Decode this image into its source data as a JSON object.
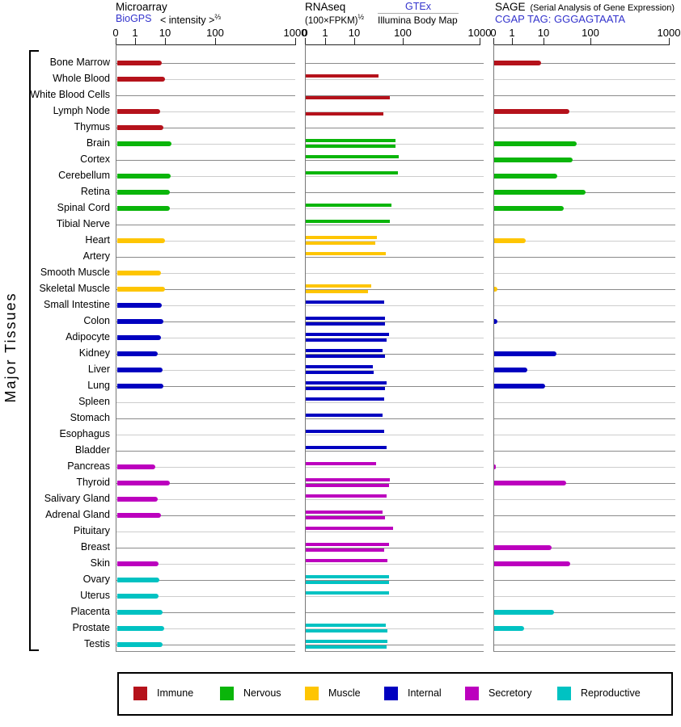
{
  "page": {
    "group_label": "Major Tissues"
  },
  "chart_data": {
    "type": "bar",
    "orientation": "horizontal",
    "axis": {
      "tick_labels": [
        "0",
        "1",
        "10",
        "100",
        "1000"
      ],
      "scale": "power",
      "range": [
        0,
        1000
      ]
    },
    "panels": [
      {
        "id": "microarray",
        "title": "Microarray",
        "source_link": "BioGPS",
        "scale_label": "< intensity >",
        "scale_sup": "⅔"
      },
      {
        "id": "rnaseq",
        "title": "RNAseq",
        "scale_label": "(100×FPKM)",
        "scale_sup": "½",
        "source_link": "GTEx",
        "source2": "Illumina Body Map"
      },
      {
        "id": "sage",
        "title": "SAGE",
        "subtitle": "(Serial Analysis of Gene Expression)",
        "source_link": "CGAP TAG: GGGAGTAATA"
      }
    ],
    "legend": [
      {
        "key": "immune",
        "label": "Immune",
        "color": "#b5121b"
      },
      {
        "key": "nervous",
        "label": "Nervous",
        "color": "#0ab50a"
      },
      {
        "key": "muscle",
        "label": "Muscle",
        "color": "#fec502"
      },
      {
        "key": "internal",
        "label": "Internal",
        "color": "#0000c0"
      },
      {
        "key": "secretory",
        "label": "Secretory",
        "color": "#bc00be"
      },
      {
        "key": "reproductive",
        "label": "Reproductive",
        "color": "#00c2c2"
      }
    ],
    "tissues": [
      {
        "name": "Bone Marrow",
        "group": "immune",
        "microarray": 7.8,
        "gtex": null,
        "illumina": null,
        "sage": 8.3
      },
      {
        "name": "Whole Blood",
        "group": "immune",
        "microarray": 10,
        "gtex": 32,
        "illumina": null,
        "sage": null
      },
      {
        "name": "White Blood Cells",
        "group": "immune",
        "microarray": null,
        "gtex": null,
        "illumina": 55,
        "sage": null
      },
      {
        "name": "Lymph Node",
        "group": "immune",
        "microarray": 7,
        "gtex": null,
        "illumina": 40,
        "sage": 35
      },
      {
        "name": "Thymus",
        "group": "immune",
        "microarray": 9,
        "gtex": null,
        "illumina": null,
        "sage": null
      },
      {
        "name": "Brain",
        "group": "nervous",
        "microarray": 13.5,
        "gtex": 70,
        "illumina": 70,
        "sage": 50
      },
      {
        "name": "Cortex",
        "group": "nervous",
        "microarray": null,
        "gtex": 82,
        "illumina": null,
        "sage": 42
      },
      {
        "name": "Cerebellum",
        "group": "nervous",
        "microarray": 13,
        "gtex": 79,
        "illumina": null,
        "sage": 20
      },
      {
        "name": "Retina",
        "group": "nervous",
        "microarray": 12.5,
        "gtex": null,
        "illumina": null,
        "sage": 80
      },
      {
        "name": "Spinal Cord",
        "group": "nervous",
        "microarray": 12.5,
        "gtex": 58,
        "illumina": null,
        "sage": 27
      },
      {
        "name": "Tibial Nerve",
        "group": "nervous",
        "microarray": null,
        "gtex": 54,
        "illumina": null,
        "sage": null
      },
      {
        "name": "Heart",
        "group": "muscle",
        "microarray": 10,
        "gtex": 29,
        "illumina": 27,
        "sage": 2.7
      },
      {
        "name": "Artery",
        "group": "muscle",
        "microarray": null,
        "gtex": 45,
        "illumina": null,
        "sage": null
      },
      {
        "name": "Smooth Muscle",
        "group": "muscle",
        "microarray": 7.3,
        "gtex": null,
        "illumina": null,
        "sage": null
      },
      {
        "name": "Skeletal Muscle",
        "group": "muscle",
        "microarray": 10,
        "gtex": 22,
        "illumina": 19,
        "sage": 0.2
      },
      {
        "name": "Small Intestine",
        "group": "internal",
        "microarray": 7.8,
        "gtex": 42,
        "illumina": null,
        "sage": null
      },
      {
        "name": "Colon",
        "group": "internal",
        "microarray": 8.8,
        "gtex": 43,
        "illumina": 43,
        "sage": 0.2
      },
      {
        "name": "Adipocyte",
        "group": "internal",
        "microarray": 7.3,
        "gtex": 52,
        "illumina": 46,
        "sage": null
      },
      {
        "name": "Kidney",
        "group": "internal",
        "microarray": 5.7,
        "gtex": 38,
        "illumina": 43,
        "sage": 19
      },
      {
        "name": "Liver",
        "group": "internal",
        "microarray": 8.3,
        "gtex": 24,
        "illumina": 25,
        "sage": 3
      },
      {
        "name": "Lung",
        "group": "internal",
        "microarray": 8.8,
        "gtex": 46,
        "illumina": 43,
        "sage": 11
      },
      {
        "name": "Spleen",
        "group": "internal",
        "microarray": null,
        "gtex": 41,
        "illumina": null,
        "sage": null
      },
      {
        "name": "Stomach",
        "group": "internal",
        "microarray": null,
        "gtex": 38,
        "illumina": null,
        "sage": null
      },
      {
        "name": "Esophagus",
        "group": "internal",
        "microarray": null,
        "gtex": 41,
        "illumina": null,
        "sage": null
      },
      {
        "name": "Bladder",
        "group": "internal",
        "microarray": null,
        "gtex": 46,
        "illumina": null,
        "sage": null
      },
      {
        "name": "Pancreas",
        "group": "secretory",
        "microarray": 4.7,
        "gtex": 28,
        "illumina": null,
        "sage": 0.15
      },
      {
        "name": "Thyroid",
        "group": "secretory",
        "microarray": 12.5,
        "gtex": 55,
        "illumina": 52,
        "sage": 30
      },
      {
        "name": "Salivary Gland",
        "group": "secretory",
        "microarray": 5.7,
        "gtex": 46,
        "illumina": null,
        "sage": null
      },
      {
        "name": "Adrenal Gland",
        "group": "secretory",
        "microarray": 7.3,
        "gtex": 38,
        "illumina": 43,
        "sage": null
      },
      {
        "name": "Pituitary",
        "group": "secretory",
        "microarray": null,
        "gtex": 62,
        "illumina": null,
        "sage": null
      },
      {
        "name": "Breast",
        "group": "secretory",
        "microarray": null,
        "gtex": 52,
        "illumina": 41,
        "sage": 15
      },
      {
        "name": "Skin",
        "group": "secretory",
        "microarray": 6,
        "gtex": 49,
        "illumina": null,
        "sage": 37
      },
      {
        "name": "Ovary",
        "group": "reproductive",
        "microarray": 6.5,
        "gtex": 52,
        "illumina": 52,
        "sage": null
      },
      {
        "name": "Uterus",
        "group": "reproductive",
        "microarray": 6,
        "gtex": 52,
        "illumina": null,
        "sage": null
      },
      {
        "name": "Placenta",
        "group": "reproductive",
        "microarray": 8.3,
        "gtex": null,
        "illumina": null,
        "sage": 17
      },
      {
        "name": "Prostate",
        "group": "reproductive",
        "microarray": 9.4,
        "gtex": 45,
        "illumina": 49,
        "sage": 2.4
      },
      {
        "name": "Testis",
        "group": "reproductive",
        "microarray": 8.3,
        "gtex": 49,
        "illumina": 47,
        "sage": null
      }
    ]
  }
}
